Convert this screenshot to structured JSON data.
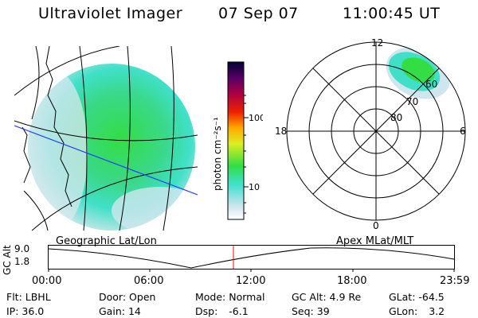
{
  "header": {
    "instrument": "Ultraviolet Imager",
    "date": "07 Sep 07",
    "time": "11:00:45 UT"
  },
  "colorbar": {
    "label": "photon cm⁻²s⁻¹",
    "ticks": [
      "100",
      "10"
    ]
  },
  "polar_plot": {
    "mlt_labels": {
      "top": "12",
      "left": "18",
      "right": "6",
      "bottom": "0"
    },
    "lat_labels": [
      "60",
      "70",
      "80"
    ],
    "caption": "Apex MLat/MLT"
  },
  "geo_plot": {
    "caption": "Geographic Lat/Lon"
  },
  "altitude_plot": {
    "axis_title": "GC Alt",
    "y_ticks": [
      "9.0",
      "1.8"
    ],
    "x_ticks": [
      "00:00",
      "06:00",
      "12:00",
      "18:00",
      "23:59"
    ],
    "marker_color": "#ff0000"
  },
  "status": {
    "filter": {
      "label": "Flt:",
      "value": "LBHL"
    },
    "ip": {
      "label": "IP:",
      "value": "36.0"
    },
    "door": {
      "label": "Door:",
      "value": "Open"
    },
    "gain": {
      "label": "Gain:",
      "value": "14"
    },
    "mode": {
      "label": "Mode:",
      "value": "Normal"
    },
    "dsp": {
      "label": "Dsp:",
      "value": "-6.1"
    },
    "gc_alt": {
      "label": "GC Alt:",
      "value": "4.9 Re"
    },
    "seq": {
      "label": "Seq:",
      "value": "39"
    },
    "glat": {
      "label": "GLat:",
      "value": "-64.5"
    },
    "glon": {
      "label": "GLon:",
      "value": "3.2"
    }
  },
  "colors": {
    "emission_low": "#d8e8ee",
    "emission_mid": "#40e0c8",
    "emission_high": "#33dd44"
  }
}
